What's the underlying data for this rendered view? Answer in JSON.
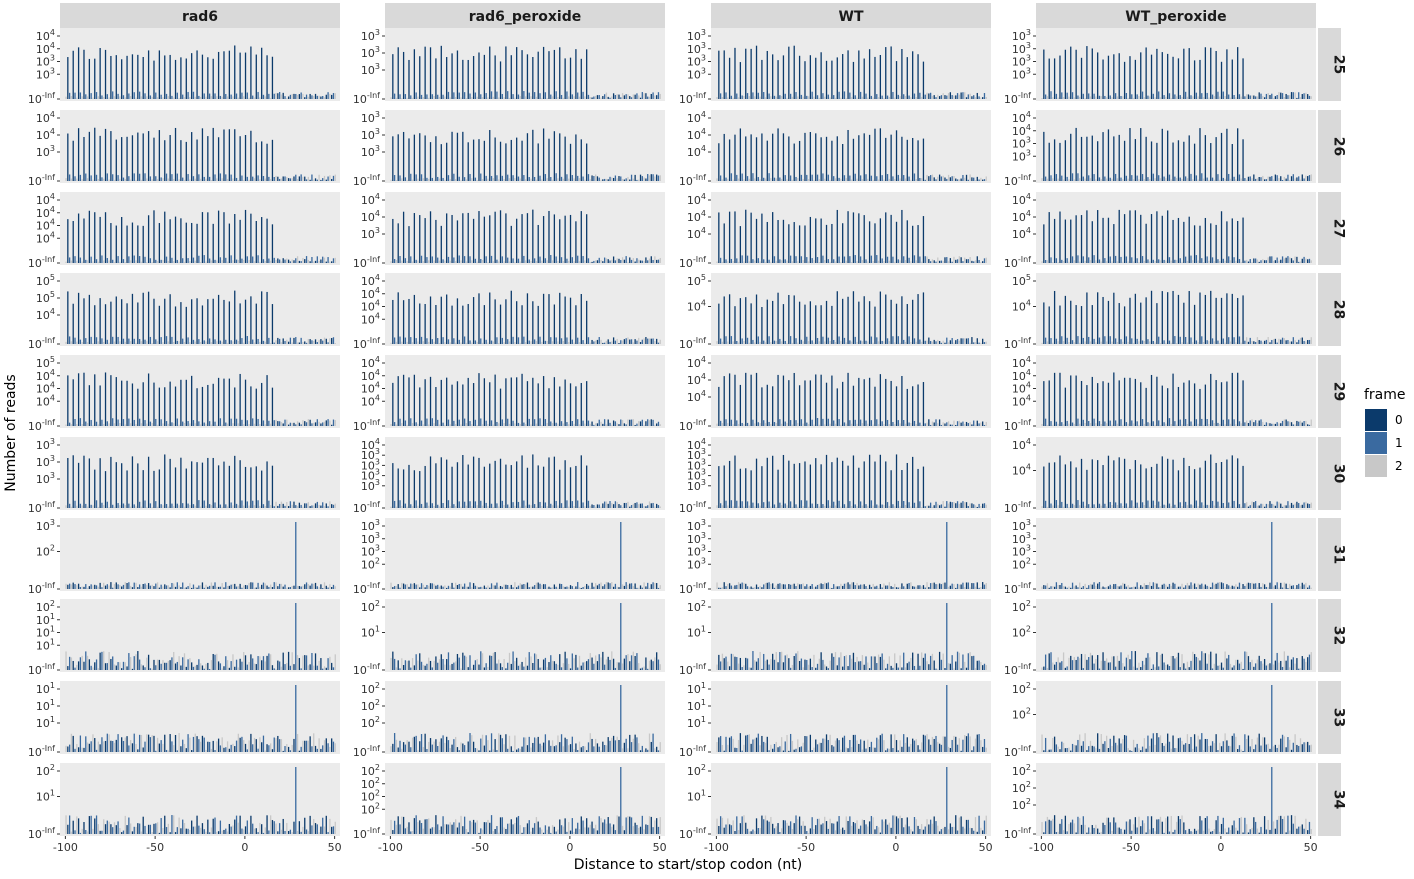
{
  "chart_data": {
    "type": "bar",
    "xlabel": "Distance to start/stop codon (nt)",
    "ylabel": "Number of reads",
    "columns": [
      "rad6",
      "rad6_peroxide",
      "WT",
      "WT_peroxide"
    ],
    "rows": [
      "25",
      "26",
      "27",
      "28",
      "29",
      "30",
      "31",
      "32",
      "33",
      "34"
    ],
    "x_ticks": [
      "-100",
      "-50",
      "0",
      "50"
    ],
    "x_tick_values": [
      -100,
      -50,
      0,
      50
    ],
    "xlim": [
      -103,
      53
    ],
    "y_min_label": "10^-Inf",
    "legend": {
      "title": "frame",
      "position": "right",
      "items": [
        {
          "label": "0",
          "color": "#0b3a6b"
        },
        {
          "label": "1",
          "color": "#3a6aa0"
        },
        {
          "label": "2",
          "color": "#c8c8c8"
        }
      ]
    },
    "panel_background": "#ebebeb",
    "strip_background": "#d9d9d9",
    "y_ticks": [
      [
        [
          "10^4",
          "10^4",
          "10^3",
          "10^3"
        ],
        [
          "10^3",
          "10^3",
          "10^3"
        ],
        [
          "10^3",
          "10^3",
          "10^3",
          "10^3"
        ],
        [
          "10^3",
          "10^3",
          "10^3",
          "10^3"
        ]
      ],
      [
        [
          "10^4",
          "10^4",
          "10^3"
        ],
        [
          "10^3",
          "10^3",
          "10^3"
        ],
        [
          "10^4",
          "10^4",
          "10^4"
        ],
        [
          "10^4",
          "10^4",
          "10^3",
          "10^3"
        ]
      ],
      [
        [
          "10^4",
          "10^4",
          "10^4",
          "10^4"
        ],
        [
          "10^4",
          "10^4",
          "10^3"
        ],
        [
          "10^4",
          "10^4",
          "10^4"
        ],
        [
          "10^4",
          "10^4",
          "10^4"
        ]
      ],
      [
        [
          "10^5",
          "10^5",
          "10^4"
        ],
        [
          "10^4",
          "10^4",
          "10^4",
          "10^4"
        ],
        [
          "10^5",
          "10^4"
        ],
        [
          "10^5",
          "10^4"
        ]
      ],
      [
        [
          "10^5",
          "10^4",
          "10^4",
          "10^4"
        ],
        [
          "10^4",
          "10^4",
          "10^4",
          "10^4"
        ],
        [
          "10^4",
          "10^4",
          "10^4"
        ],
        [
          "10^4",
          "10^4",
          "10^4",
          "10^4"
        ]
      ],
      [
        [
          "10^3",
          "10^3",
          "10^3"
        ],
        [
          "10^4",
          "10^3",
          "10^3",
          "10^3",
          "10^3"
        ],
        [
          "10^4",
          "10^3",
          "10^3",
          "10^3",
          "10^3"
        ],
        [
          "10^4",
          "10^4"
        ]
      ],
      [
        [
          "10^3",
          "10^2"
        ],
        [
          "10^3",
          "10^3",
          "10^3",
          "10^2"
        ],
        [
          "10^3",
          "10^3",
          "10^3",
          "10^3"
        ],
        [
          "10^3",
          "10^3",
          "10^3",
          "10^2"
        ]
      ],
      [
        [
          "10^2",
          "10^1",
          "10^1",
          "10^1"
        ],
        [
          "10^2",
          "10^1"
        ],
        [
          "10^2",
          "10^1"
        ],
        [
          "10^2",
          "10^2"
        ]
      ],
      [
        [
          "10^1",
          "10^1",
          "10^1"
        ],
        [
          "10^2",
          "10^2",
          "10^2"
        ],
        [
          "10^1",
          "10^1",
          "10^1"
        ],
        [
          "10^2",
          "10^2"
        ]
      ],
      [
        [
          "10^2",
          "10^1"
        ],
        [
          "10^2",
          "10^2",
          "10^2",
          "10^2"
        ],
        [
          "10^2",
          "10^1"
        ],
        [
          "10^2",
          "10^2",
          "10^2"
        ]
      ]
    ]
  }
}
